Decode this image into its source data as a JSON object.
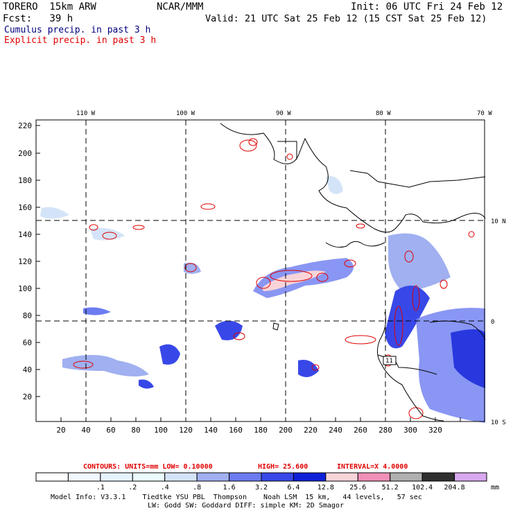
{
  "header": {
    "model": "TORERO  15km ARW",
    "org": "NCAR/MMM",
    "init": "Init: 06 UTC Fri 24 Feb 12",
    "fcst": "Fcst:   39 h",
    "valid": "Valid: 21 UTC Sat 25 Feb 12 (15 CST Sat 25 Feb 12)",
    "field1": "Cumulus precip. in past 3 h",
    "field2": "Explicit precip. in past 3 h"
  },
  "colors": {
    "field1": "#000080",
    "field2": "#e00000",
    "coast": "#000000",
    "contour": "#e00000"
  },
  "map": {
    "lon_labels": [
      "110 W",
      "100 W",
      "90 W",
      "80 W",
      "70 W"
    ],
    "lat_labels": [
      "10 N",
      "0",
      "10 S"
    ],
    "x_ticks": [
      "20",
      "40",
      "60",
      "80",
      "100",
      "120",
      "140",
      "160",
      "180",
      "200",
      "220",
      "240",
      "260",
      "280",
      "300",
      "320"
    ],
    "y_ticks": [
      "220",
      "200",
      "180",
      "160",
      "140",
      "120",
      "100",
      "80",
      "60",
      "40",
      "20"
    ],
    "box_label": "11"
  },
  "contour_info": {
    "units": "CONTOURS:  UNITS=mm  LOW= 0.10000",
    "high": "HIGH=  25.600",
    "interval": "INTERVAL=X  4.0000"
  },
  "colorbar": {
    "labels": [
      ".1",
      ".2",
      ".4",
      ".8",
      "1.6",
      "3.2",
      "6.4",
      "12.8",
      "25.6",
      "51.2",
      "102.4",
      "204.8"
    ],
    "unit": "mm",
    "colors": [
      "#ffffff",
      "#f2f8ff",
      "#e6f4ff",
      "#eafcfc",
      "#d4e4f8",
      "#a0b0f0",
      "#6c7cf0",
      "#3848e8",
      "#1020d8",
      "#f8d4d8",
      "#f090b8",
      "#b0b0b0",
      "#303030",
      "#d8a8f0"
    ]
  },
  "footer": {
    "line1": "Model Info: V3.3.1    Tiedtke YSU PBL  Thompson    Noah LSM  15 km,   44 levels,   57 sec",
    "line2": "LW: Godd SW: Goddard DIFF: simple KM: 2D Smagor"
  }
}
